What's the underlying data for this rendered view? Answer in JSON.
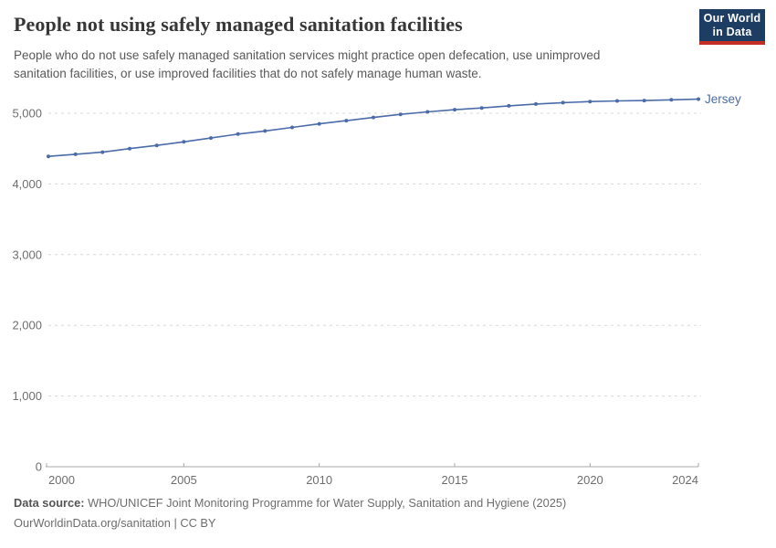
{
  "header": {
    "title": "People not using safely managed sanitation facilities",
    "subtitle_line1": "People who do not use safely managed sanitation services might practice open defecation, use unimproved",
    "subtitle_line2": "sanitation facilities, or use improved facilities that do not safely manage human waste.",
    "logo_line1": "Our World",
    "logo_line2": "in Data"
  },
  "chart_data": {
    "type": "line",
    "title": "People not using safely managed sanitation facilities",
    "xlabel": "",
    "ylabel": "",
    "xlim": [
      2000,
      2024
    ],
    "ylim": [
      0,
      5310
    ],
    "grid": "horizontal-dashed",
    "legend_position": "end-of-line-label",
    "xticks": [
      2000,
      2005,
      2010,
      2015,
      2020,
      2024
    ],
    "xtick_labels": [
      "2000",
      "2005",
      "2010",
      "2015",
      "2020",
      "2024"
    ],
    "yticks": [
      0,
      1000,
      2000,
      3000,
      4000,
      5000
    ],
    "ytick_labels": [
      "0",
      "1,000",
      "2,000",
      "3,000",
      "4,000",
      "5,000"
    ],
    "series": [
      {
        "name": "Jersey",
        "color": "#4c6ba9",
        "x": [
          2000,
          2001,
          2002,
          2003,
          2004,
          2005,
          2006,
          2007,
          2008,
          2009,
          2010,
          2011,
          2012,
          2013,
          2014,
          2015,
          2016,
          2017,
          2018,
          2019,
          2020,
          2021,
          2022,
          2023,
          2024
        ],
        "values": [
          4390,
          4420,
          4450,
          4500,
          4545,
          4595,
          4650,
          4705,
          4750,
          4800,
          4850,
          4895,
          4940,
          4985,
          5020,
          5050,
          5075,
          5105,
          5130,
          5150,
          5165,
          5175,
          5180,
          5190,
          5200
        ]
      }
    ]
  },
  "footer": {
    "datasource_label": "Data source:",
    "datasource_text": "WHO/UNICEF Joint Monitoring Programme for Water Supply, Sanitation and Hygiene (2025)",
    "license_text": "OurWorldinData.org/sanitation | CC BY"
  },
  "colors": {
    "line": "#4c6ba9",
    "grid": "#d8d8d8",
    "axis": "#a8a8a8",
    "tick_text": "#6e6e6e",
    "logo_bg": "#1d3d63",
    "logo_red": "#c32d23"
  }
}
